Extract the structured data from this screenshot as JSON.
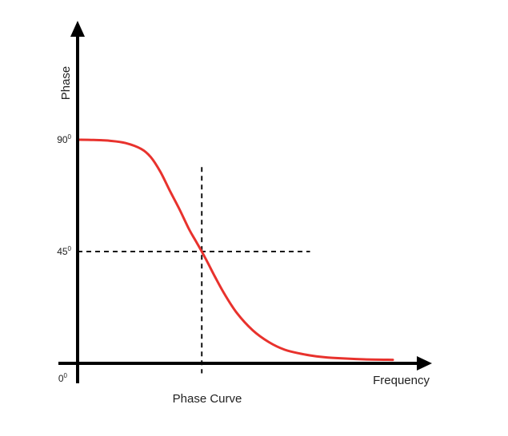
{
  "chart_data": {
    "type": "line",
    "title": "Phase Curve",
    "xlabel": "Frequency",
    "ylabel": "Phase",
    "y_ticks": [
      {
        "value": 0,
        "label": "0",
        "sup": "0"
      },
      {
        "value": 45,
        "label": "45",
        "sup": "0"
      },
      {
        "value": 90,
        "label": "90",
        "sup": "0"
      }
    ],
    "xlim": [
      0,
      1
    ],
    "ylim": [
      0,
      120
    ],
    "grid": false,
    "transition_frequency": 0.39,
    "series": [
      {
        "color": "#e8322d",
        "x": [
          0.0,
          0.05,
          0.1,
          0.15,
          0.2,
          0.23,
          0.26,
          0.29,
          0.32,
          0.35,
          0.37,
          0.39,
          0.41,
          0.43,
          0.46,
          0.5,
          0.55,
          0.6,
          0.65,
          0.7,
          0.75,
          0.8,
          0.9,
          0.99
        ],
        "values": [
          90.0,
          89.9,
          89.6,
          88.7,
          86.3,
          83.0,
          77.1,
          69.4,
          62.0,
          54.0,
          49.5,
          45.0,
          40.2,
          35.2,
          28.2,
          20.3,
          13.3,
          8.6,
          5.5,
          3.9,
          2.8,
          2.2,
          1.6,
          1.4
        ]
      }
    ],
    "guides": [
      {
        "type": "horizontal-dashed",
        "y": 45,
        "x_from": 0,
        "x_to": 0.73
      },
      {
        "type": "vertical-dashed",
        "x": 0.39,
        "y_from": -4,
        "y_to": 79
      }
    ]
  }
}
